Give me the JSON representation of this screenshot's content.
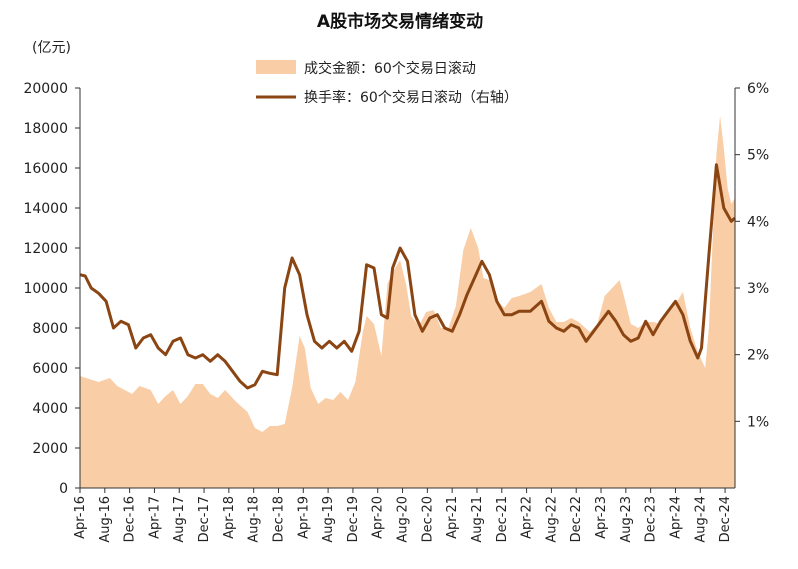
{
  "chart_data": {
    "type": "area+line",
    "title": "A股市场交易情绪变动",
    "y_left_unit": "(亿元)",
    "y_left_range": [
      0,
      20000
    ],
    "y_left_ticks": [
      "0",
      "2000",
      "4000",
      "6000",
      "8000",
      "10000",
      "12000",
      "14000",
      "16000",
      "18000",
      "20000"
    ],
    "y_right_range": [
      0,
      6
    ],
    "y_right_ticks": [
      "1%",
      "2%",
      "3%",
      "4%",
      "5%",
      "6%"
    ],
    "x_ticks": [
      "Apr-16",
      "Aug-16",
      "Dec-16",
      "Apr-17",
      "Aug-17",
      "Dec-17",
      "Apr-18",
      "Aug-18",
      "Dec-18",
      "Apr-19",
      "Aug-19",
      "Dec-19",
      "Apr-20",
      "Aug-20",
      "Dec-20",
      "Apr-21",
      "Aug-21",
      "Dec-21",
      "Apr-22",
      "Aug-22",
      "Dec-22",
      "Apr-23",
      "Aug-23",
      "Dec-23",
      "Apr-24",
      "Aug-24",
      "Dec-24"
    ],
    "legend_position": "top-center",
    "series": [
      {
        "name": "成交金额：60个交易日滚动",
        "kind": "area",
        "axis": "left",
        "color": "#F9CDA6",
        "x": [
          2016.25,
          2016.5,
          2016.65,
          2016.75,
          2016.95,
          2017.05,
          2017.2,
          2017.3,
          2017.4,
          2017.5,
          2017.6,
          2017.7,
          2017.8,
          2017.9,
          2018.0,
          2018.1,
          2018.2,
          2018.35,
          2018.5,
          2018.6,
          2018.7,
          2018.8,
          2018.9,
          2019.0,
          2019.1,
          2019.2,
          2019.27,
          2019.35,
          2019.45,
          2019.55,
          2019.65,
          2019.75,
          2019.85,
          2019.95,
          2020.05,
          2020.1,
          2020.2,
          2020.3,
          2020.38,
          2020.45,
          2020.55,
          2020.63,
          2020.7,
          2020.8,
          2020.9,
          2021.0,
          2021.1,
          2021.2,
          2021.3,
          2021.4,
          2021.5,
          2021.6,
          2021.67,
          2021.75,
          2021.85,
          2021.95,
          2022.05,
          2022.15,
          2022.3,
          2022.45,
          2022.55,
          2022.65,
          2022.75,
          2022.85,
          2022.95,
          2023.1,
          2023.2,
          2023.3,
          2023.4,
          2023.5,
          2023.55,
          2023.65,
          2023.75,
          2023.85,
          2023.95,
          2024.05,
          2024.15,
          2024.25,
          2024.35,
          2024.45,
          2024.55,
          2024.6,
          2024.65,
          2024.7,
          2024.75,
          2024.8,
          2024.85,
          2024.9,
          2024.95,
          2025.0,
          2025.05
        ],
        "values": [
          5600,
          5300,
          5500,
          5100,
          4700,
          5100,
          4900,
          4200,
          4600,
          4900,
          4200,
          4600,
          5200,
          5200,
          4700,
          4500,
          4900,
          4300,
          3800,
          3000,
          2800,
          3100,
          3100,
          3200,
          5000,
          7600,
          7000,
          5000,
          4200,
          4500,
          4400,
          4800,
          4400,
          5300,
          7800,
          8600,
          8200,
          6600,
          10200,
          10800,
          11400,
          10200,
          8600,
          8100,
          8800,
          8900,
          8000,
          8000,
          9100,
          11900,
          13000,
          12000,
          10500,
          10400,
          9400,
          9000,
          9500,
          9600,
          9800,
          10200,
          9000,
          8300,
          8300,
          8500,
          8300,
          7800,
          8200,
          9600,
          10000,
          10400,
          9700,
          8200,
          8000,
          8300,
          8300,
          8200,
          8800,
          9200,
          9800,
          8000,
          6800,
          6400,
          6000,
          8000,
          12500,
          16700,
          18600,
          17000,
          15000,
          14200,
          14500
        ]
      },
      {
        "name": "换手率：60个交易日滚动（右轴）",
        "kind": "line",
        "axis": "right",
        "color": "#8B4513",
        "x": [
          2016.25,
          2016.32,
          2016.4,
          2016.5,
          2016.6,
          2016.7,
          2016.8,
          2016.9,
          2017.0,
          2017.1,
          2017.2,
          2017.3,
          2017.4,
          2017.5,
          2017.6,
          2017.7,
          2017.8,
          2017.9,
          2018.0,
          2018.1,
          2018.2,
          2018.3,
          2018.4,
          2018.5,
          2018.6,
          2018.7,
          2018.8,
          2018.9,
          2019.0,
          2019.1,
          2019.2,
          2019.3,
          2019.4,
          2019.5,
          2019.6,
          2019.7,
          2019.8,
          2019.9,
          2020.0,
          2020.1,
          2020.2,
          2020.3,
          2020.38,
          2020.45,
          2020.55,
          2020.65,
          2020.75,
          2020.85,
          2020.95,
          2021.05,
          2021.15,
          2021.25,
          2021.35,
          2021.45,
          2021.55,
          2021.65,
          2021.75,
          2021.85,
          2021.95,
          2022.05,
          2022.15,
          2022.3,
          2022.45,
          2022.55,
          2022.65,
          2022.75,
          2022.85,
          2022.95,
          2023.05,
          2023.15,
          2023.25,
          2023.35,
          2023.45,
          2023.55,
          2023.65,
          2023.75,
          2023.85,
          2023.95,
          2024.05,
          2024.15,
          2024.25,
          2024.35,
          2024.45,
          2024.55,
          2024.6,
          2024.7,
          2024.8,
          2024.9,
          2025.0,
          2025.05
        ],
        "values": [
          3.2,
          3.18,
          3.0,
          2.92,
          2.8,
          2.4,
          2.5,
          2.45,
          2.1,
          2.25,
          2.3,
          2.1,
          2.0,
          2.2,
          2.25,
          2.0,
          1.95,
          2.0,
          1.9,
          2.0,
          1.9,
          1.75,
          1.6,
          1.5,
          1.55,
          1.75,
          1.72,
          1.7,
          3.0,
          3.45,
          3.2,
          2.6,
          2.2,
          2.1,
          2.2,
          2.1,
          2.2,
          2.05,
          2.35,
          3.35,
          3.3,
          2.6,
          2.55,
          3.3,
          3.6,
          3.4,
          2.6,
          2.35,
          2.55,
          2.6,
          2.4,
          2.35,
          2.6,
          2.9,
          3.15,
          3.4,
          3.2,
          2.8,
          2.6,
          2.6,
          2.65,
          2.65,
          2.8,
          2.5,
          2.4,
          2.35,
          2.45,
          2.4,
          2.2,
          2.35,
          2.5,
          2.65,
          2.5,
          2.3,
          2.2,
          2.25,
          2.5,
          2.3,
          2.5,
          2.65,
          2.8,
          2.6,
          2.2,
          1.95,
          2.1,
          3.5,
          4.85,
          4.2,
          4.0,
          4.05
        ]
      }
    ]
  }
}
